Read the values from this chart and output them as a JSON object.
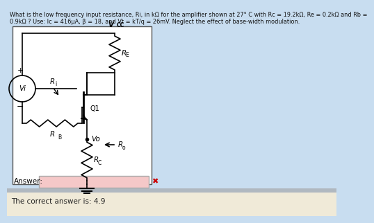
{
  "title_text": "What is the low frequency input resistance, Ri, in kΩ for the amplifier shown at 27° C with Rc = 19.2kΩ, Re = 0.2kΩ and Rb =",
  "title_text2": "0.9kΩ ? Use: Ic = 416μA, β = 18, and Vt = kT/q = 26mV. Neglect the effect of base-width modulation.",
  "answer_label": "Answer:",
  "correct_answer": "The correct answer is: 4.9",
  "bg_color_main": "#c8ddf0",
  "bg_color_separator": "#b0b8c0",
  "bg_color_bottom": "#f0ead8",
  "circuit_bg": "#ffffff",
  "answer_box_color": "#f5c8c8",
  "vcc_label": "V",
  "vcc_sub": "CC",
  "vi_label": "Vi",
  "ri_label": "R",
  "ri_sub": "i",
  "rb_label": "R",
  "rb_sub": "B",
  "re_label": "R",
  "re_sub": "E",
  "q1_label": "Q1",
  "vo_label": "Vo",
  "ro_label": "R",
  "ro_sub": "o",
  "rc_label": "R",
  "rc_sub": "C",
  "plus_sign": "+",
  "minus_sign": "−"
}
